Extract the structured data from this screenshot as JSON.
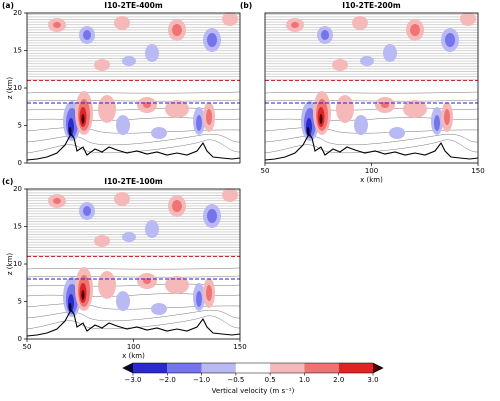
{
  "chart_data": [
    {
      "type": "contour",
      "panel": "(a)",
      "title": "I10-2TE-400m",
      "xlim": [
        50,
        150
      ],
      "ylim": [
        0,
        20
      ],
      "yticks": [
        0,
        5,
        10,
        15,
        20
      ],
      "ylabel": "z (km)",
      "hlines": [
        {
          "value": 11,
          "color": "#d62728"
        },
        {
          "value": 8,
          "color": "#1f1fd0"
        }
      ]
    },
    {
      "type": "contour",
      "panel": "(b)",
      "title": "I10-2TE-200m",
      "xlim": [
        50,
        150
      ],
      "ylim": [
        0,
        20
      ],
      "xticks": [
        50,
        100,
        150
      ],
      "xlabel": "x (km)",
      "hlines": [
        {
          "value": 11,
          "color": "#d62728"
        },
        {
          "value": 8,
          "color": "#1f1fd0"
        }
      ]
    },
    {
      "type": "contour",
      "panel": "(c)",
      "title": "I10-2TE-100m",
      "xlim": [
        50,
        150
      ],
      "ylim": [
        0,
        20
      ],
      "xticks": [
        50,
        100,
        150
      ],
      "yticks": [
        0,
        5,
        10,
        15,
        20
      ],
      "xlabel": "x (km)",
      "ylabel": "z (km)",
      "hlines": [
        {
          "value": 11,
          "color": "#d62728"
        },
        {
          "value": 8,
          "color": "#1f1fd0"
        }
      ]
    }
  ],
  "colorbar": {
    "label": "Vertical velocity (m s⁻¹)",
    "ticks": [
      {
        "value": -3,
        "label": "−3.0"
      },
      {
        "value": -2,
        "label": "−2.0"
      },
      {
        "value": -1,
        "label": "−1.0"
      },
      {
        "value": -0.5,
        "label": "−0.5"
      },
      {
        "value": 0.5,
        "label": "0.5"
      },
      {
        "value": 1,
        "label": "1.0"
      },
      {
        "value": 2,
        "label": "2.0"
      },
      {
        "value": 3,
        "label": "3.0"
      }
    ],
    "colors": [
      "#2a2ad0",
      "#7474ec",
      "#b9b9f3",
      "#ffffff",
      "#f6b9b9",
      "#ef7373",
      "#e02424"
    ],
    "extend_colors": [
      "#05053a",
      "#4a0000"
    ]
  }
}
